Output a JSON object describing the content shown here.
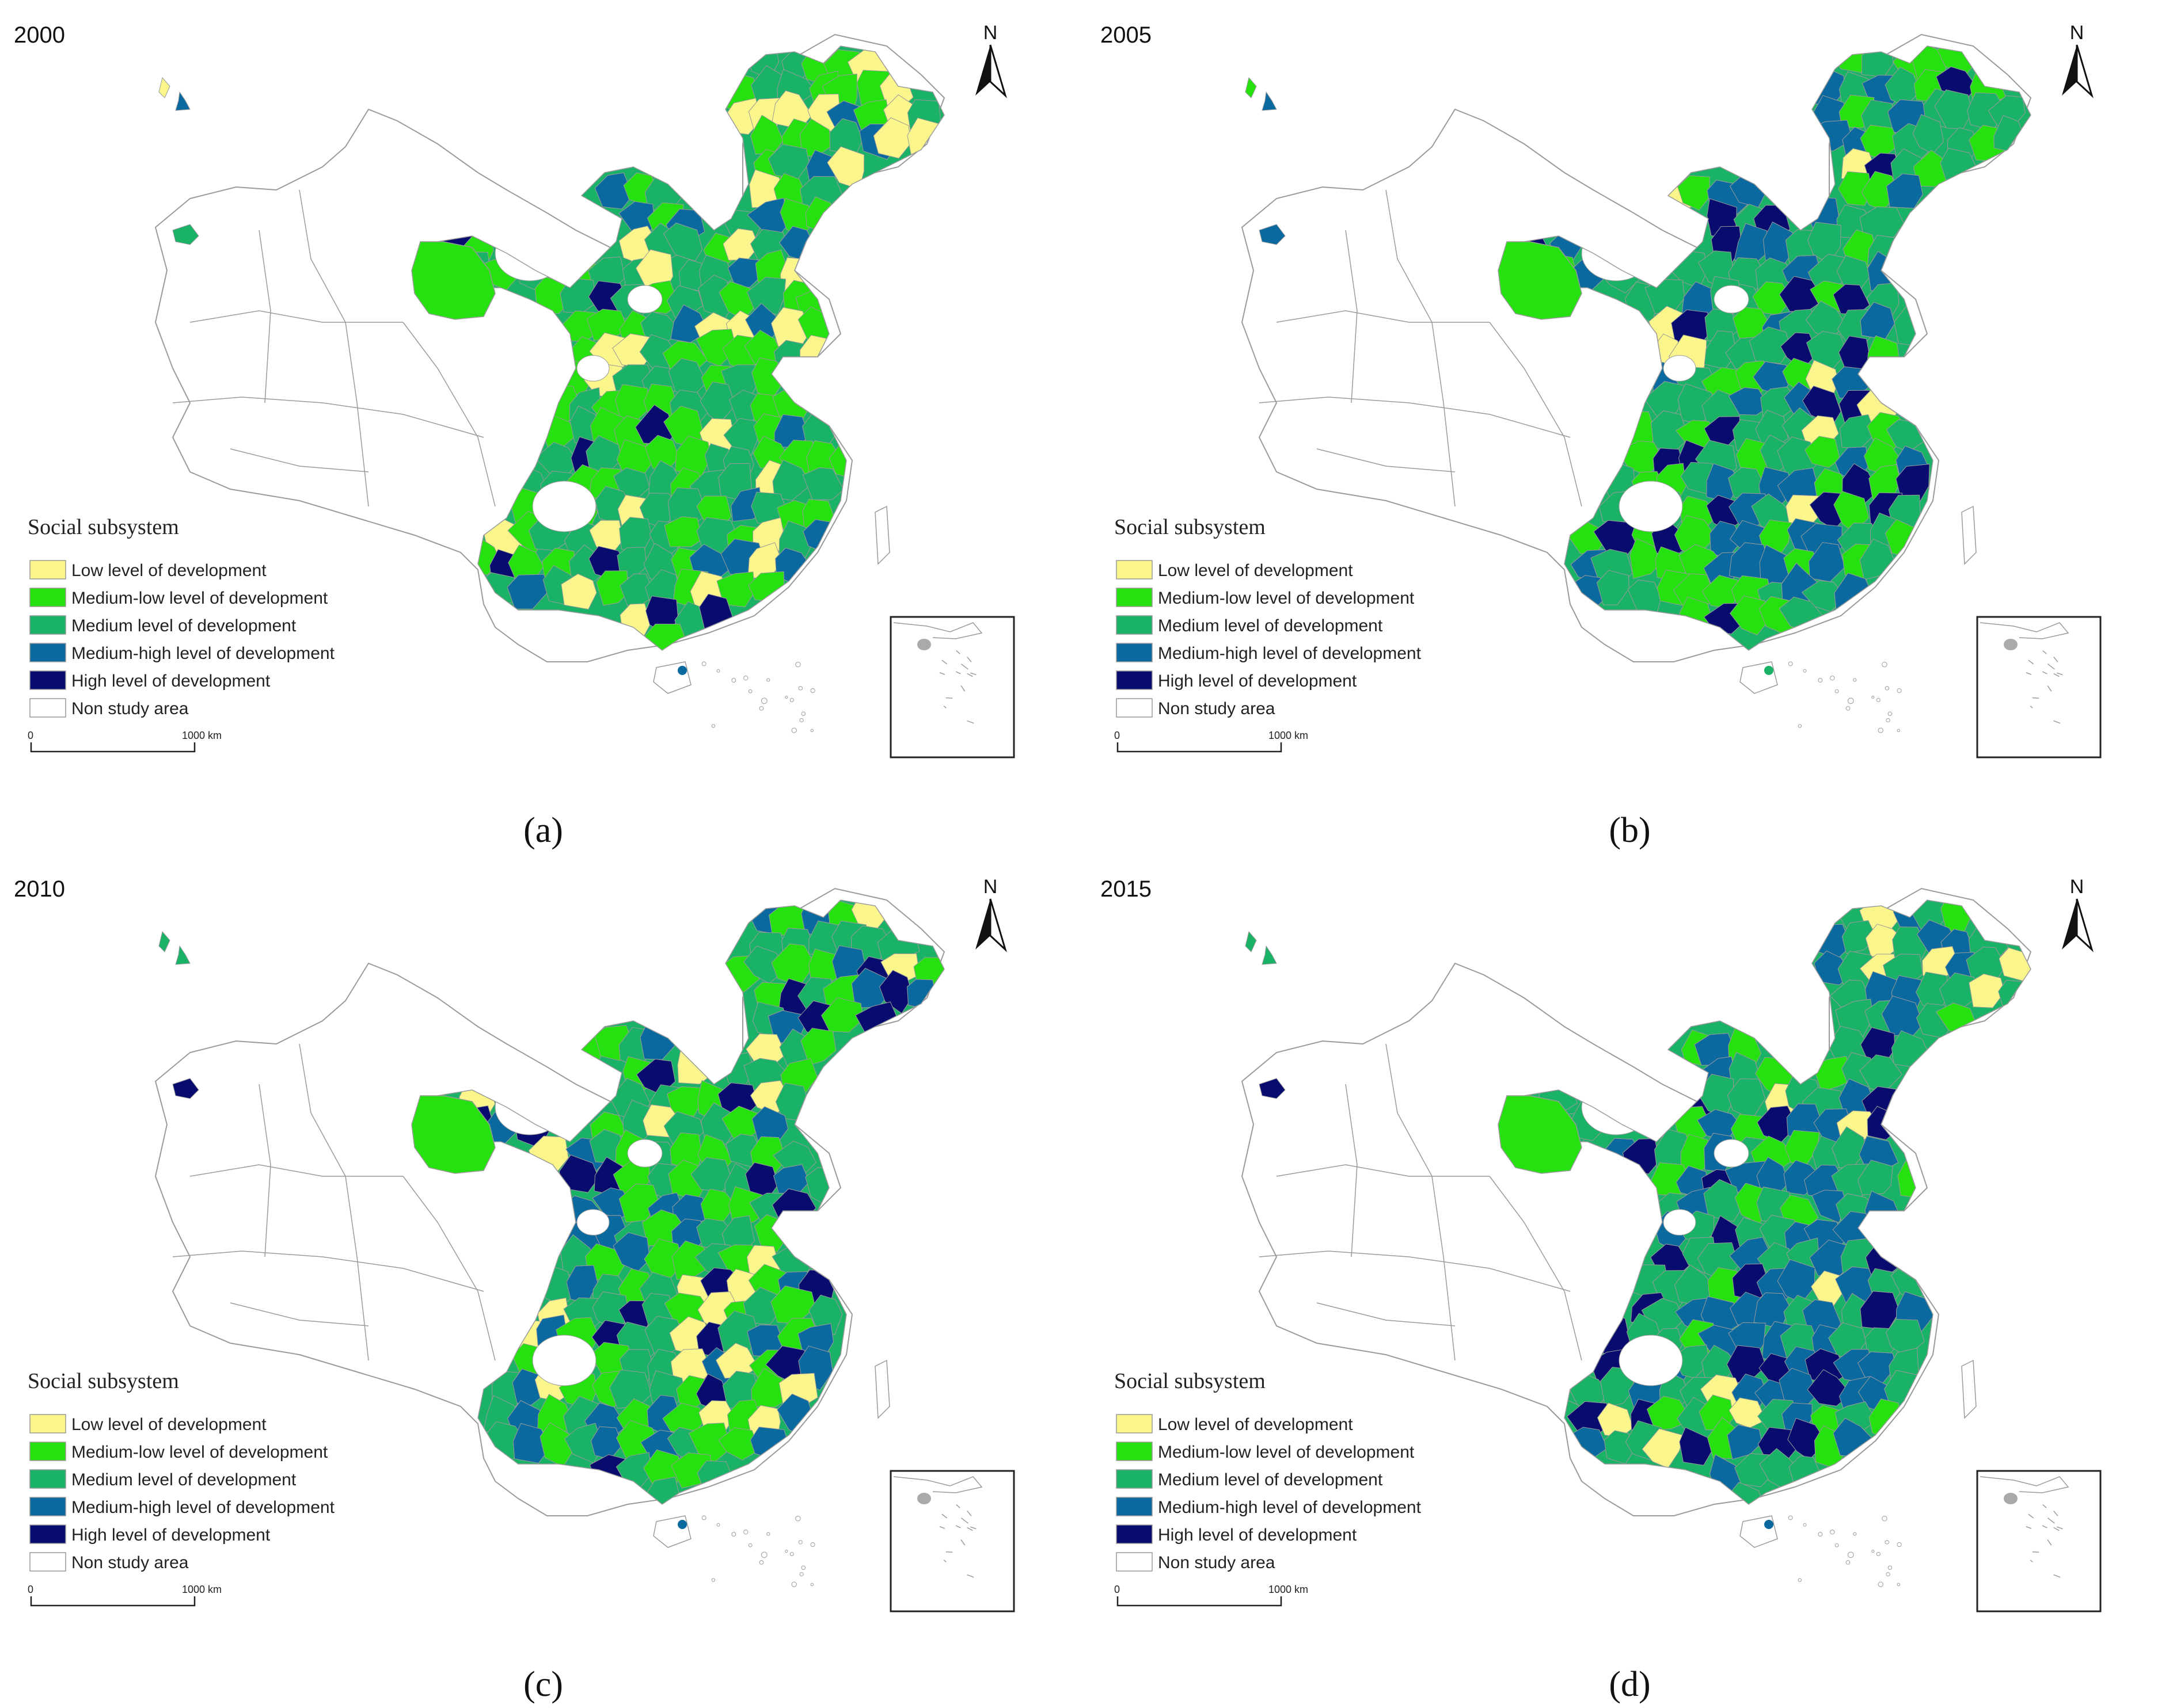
{
  "panels": [
    {
      "year": "2000",
      "caption": "(a)",
      "variant": 0
    },
    {
      "year": "2005",
      "caption": "(b)",
      "variant": 1
    },
    {
      "year": "2010",
      "caption": "(c)",
      "variant": 2
    },
    {
      "year": "2015",
      "caption": "(d)",
      "variant": 3
    }
  ],
  "legend": {
    "title": "Social subsystem",
    "items": [
      {
        "label": "Low level of development",
        "color": "#fbf68c"
      },
      {
        "label": "Medium-low level of development",
        "color": "#25e10f"
      },
      {
        "label": "Medium level of development",
        "color": "#19b267"
      },
      {
        "label": "Medium-high level of development",
        "color": "#0a6aa0"
      },
      {
        "label": "High level of development",
        "color": "#070c6e"
      },
      {
        "label": "Non study area",
        "color": "#ffffff"
      }
    ]
  },
  "scale_bar": {
    "start": "0",
    "end": "1000 km"
  },
  "north_arrow": "N",
  "colors": {
    "border": "#9a9a9a",
    "frame": "#222222"
  }
}
